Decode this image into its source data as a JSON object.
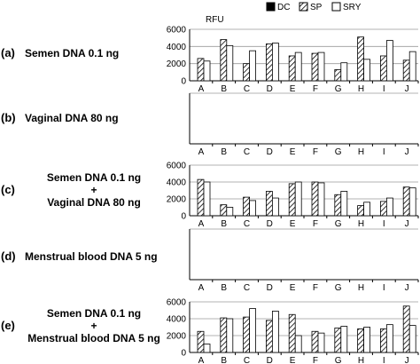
{
  "legend": {
    "items": [
      {
        "label": "DC",
        "fill": "#000000",
        "pattern": "solid"
      },
      {
        "label": "SP",
        "fill": "#ffffff",
        "pattern": "hatch"
      },
      {
        "label": "SRY",
        "fill": "#ffffff",
        "pattern": "none"
      }
    ]
  },
  "y_unit": "RFU",
  "rows": [
    {
      "letter": "(a)",
      "lines": [
        "Semen DNA 0.1 ng"
      ]
    },
    {
      "letter": "(b)",
      "lines": [
        "Vaginal DNA 80 ng"
      ]
    },
    {
      "letter": "(c)",
      "lines": [
        "Semen DNA 0.1 ng",
        "+",
        "Vaginal DNA 80 ng"
      ]
    },
    {
      "letter": "(d)",
      "lines": [
        "Menstrual blood DNA 5 ng"
      ]
    },
    {
      "letter": "(e)",
      "lines": [
        "Semen DNA 0.1 ng",
        "+",
        "Menstrual blood DNA 5 ng"
      ]
    }
  ],
  "chart_data": [
    {
      "type": "bar",
      "panel": "a",
      "categories": [
        "A",
        "B",
        "C",
        "D",
        "E",
        "F",
        "G",
        "H",
        "I",
        "J"
      ],
      "ylim": [
        0,
        6000
      ],
      "yticks": [
        0,
        2000,
        4000,
        6000
      ],
      "ylabel": "RFU",
      "series": [
        {
          "name": "DC",
          "values": [
            0,
            0,
            0,
            0,
            0,
            0,
            0,
            0,
            0,
            0
          ]
        },
        {
          "name": "SP",
          "values": [
            2600,
            4800,
            2000,
            4300,
            2900,
            3200,
            1300,
            5100,
            2900,
            2400
          ]
        },
        {
          "name": "SRY",
          "values": [
            2300,
            4100,
            3500,
            4400,
            3300,
            3300,
            2100,
            2500,
            4700,
            3400
          ]
        }
      ]
    },
    {
      "type": "bar",
      "panel": "b",
      "categories": [
        "A",
        "B",
        "C",
        "D",
        "E",
        "F",
        "G",
        "H",
        "I",
        "J"
      ],
      "ylim": [
        0,
        6000
      ],
      "series": [
        {
          "name": "DC",
          "values": [
            0,
            0,
            0,
            0,
            0,
            0,
            0,
            0,
            0,
            0
          ]
        },
        {
          "name": "SP",
          "values": [
            0,
            0,
            0,
            0,
            0,
            0,
            0,
            0,
            0,
            0
          ]
        },
        {
          "name": "SRY",
          "values": [
            0,
            0,
            0,
            0,
            0,
            0,
            0,
            0,
            0,
            0
          ]
        }
      ]
    },
    {
      "type": "bar",
      "panel": "c",
      "categories": [
        "A",
        "B",
        "C",
        "D",
        "E",
        "F",
        "G",
        "H",
        "I",
        "J"
      ],
      "ylim": [
        0,
        6000
      ],
      "yticks": [
        0,
        2000,
        4000,
        6000
      ],
      "series": [
        {
          "name": "DC",
          "values": [
            0,
            0,
            0,
            0,
            0,
            0,
            0,
            0,
            0,
            0
          ]
        },
        {
          "name": "SP",
          "values": [
            4300,
            1300,
            2200,
            2900,
            3800,
            4000,
            2500,
            1200,
            1700,
            3400
          ]
        },
        {
          "name": "SRY",
          "values": [
            4000,
            1000,
            1800,
            2100,
            4000,
            3900,
            2900,
            1600,
            2100,
            3300
          ]
        }
      ]
    },
    {
      "type": "bar",
      "panel": "d",
      "categories": [
        "A",
        "B",
        "C",
        "D",
        "E",
        "F",
        "G",
        "H",
        "I",
        "J"
      ],
      "ylim": [
        0,
        6000
      ],
      "series": [
        {
          "name": "DC",
          "values": [
            0,
            0,
            0,
            0,
            0,
            0,
            0,
            0,
            0,
            0
          ]
        },
        {
          "name": "SP",
          "values": [
            0,
            0,
            0,
            0,
            0,
            0,
            0,
            0,
            0,
            0
          ]
        },
        {
          "name": "SRY",
          "values": [
            0,
            0,
            0,
            0,
            0,
            0,
            0,
            0,
            0,
            0
          ]
        }
      ]
    },
    {
      "type": "bar",
      "panel": "e",
      "categories": [
        "A",
        "B",
        "C",
        "D",
        "E",
        "F",
        "G",
        "H",
        "I",
        "J"
      ],
      "ylim": [
        0,
        6000
      ],
      "yticks": [
        0,
        2000,
        4000,
        6000
      ],
      "series": [
        {
          "name": "DC",
          "values": [
            0,
            0,
            0,
            0,
            0,
            0,
            0,
            0,
            0,
            0
          ]
        },
        {
          "name": "SP",
          "values": [
            2500,
            4100,
            4200,
            3800,
            4500,
            2500,
            2900,
            2800,
            2800,
            5500
          ]
        },
        {
          "name": "SRY",
          "values": [
            1000,
            4000,
            5200,
            4900,
            2000,
            2300,
            3100,
            3000,
            3300,
            3200
          ]
        }
      ]
    }
  ]
}
